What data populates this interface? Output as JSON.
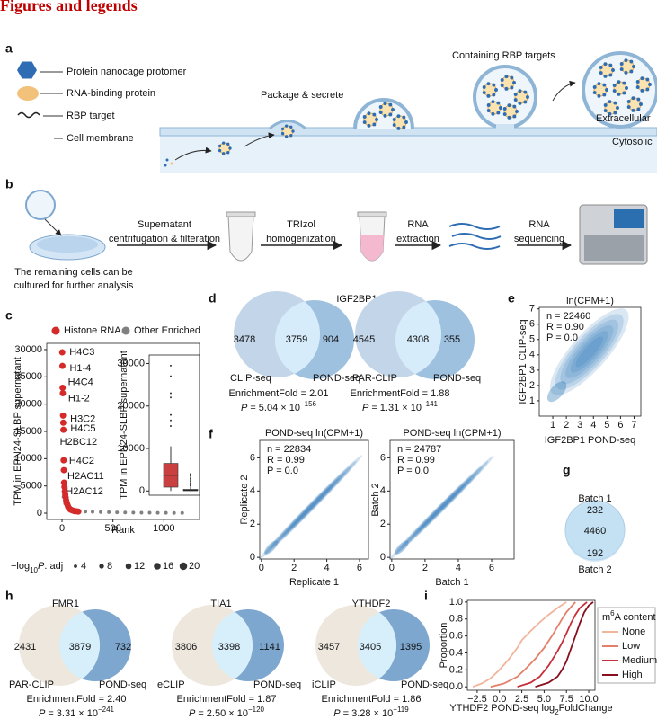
{
  "header": {
    "title": "Figures and legends"
  },
  "panel_labels": [
    "a",
    "b",
    "c",
    "d",
    "e",
    "f",
    "g",
    "h",
    "i"
  ],
  "panel_a": {
    "legend": [
      "Protein nanocage protomer",
      "RNA-binding protein",
      "RBP target",
      "Cell membrane"
    ],
    "steps": [
      "Package & secrete",
      "Containing RBP targets"
    ],
    "regions": [
      "Extracellular",
      "Cytosolic"
    ]
  },
  "panel_b": {
    "steps": [
      [
        "Supernatant",
        "centrifugation & filteration"
      ],
      [
        "TRIzol",
        "homogenization"
      ],
      [
        "RNA",
        "extraction"
      ],
      [
        "RNA",
        "sequencing"
      ]
    ],
    "note": [
      "The remaining cells can be",
      "cultured for further analysis"
    ]
  },
  "panel_d": {
    "title": "IGF2BP1"
  },
  "venns": [
    {
      "left_count": 3478,
      "overlap_count": 3759,
      "right_count": 904,
      "left_label": "CLIP-seq",
      "right_label": "POND-seq",
      "enrichment": "EnrichmentFold = 2.01",
      "p_symbol": "P",
      "p_text": "= 5.04 × 10",
      "p_exp": "−156"
    },
    {
      "left_count": 4545,
      "overlap_count": 4308,
      "right_count": 355,
      "left_label": "PAR-CLIP",
      "right_label": "POND-seq",
      "enrichment": "EnrichmentFold = 1.88",
      "p_symbol": "P",
      "p_text": "= 1.31 × 10",
      "p_exp": "−141"
    },
    {
      "title": "FMR1",
      "left_count": 2431,
      "overlap_count": 3879,
      "right_count": 732,
      "left_label": "PAR-CLIP",
      "right_label": "POND-seq",
      "enrichment": "EnrichmentFold = 2.40",
      "p_symbol": "P",
      "p_text": "= 3.31 × 10",
      "p_exp": "−241"
    },
    {
      "title": "TIA1",
      "left_count": 3806,
      "overlap_count": 3398,
      "right_count": 1141,
      "left_label": "eCLIP",
      "right_label": "POND-seq",
      "enrichment": "EnrichmentFold = 1.87",
      "p_symbol": "P",
      "p_text": "= 2.50 × 10",
      "p_exp": "−120"
    },
    {
      "title": "YTHDF2",
      "left_count": 3457,
      "overlap_count": 3405,
      "right_count": 1395,
      "left_label": "iCLIP",
      "right_label": "POND-seq",
      "enrichment": "EnrichmentFold = 1.86",
      "p_symbol": "P",
      "p_text": "= 3.28 × 10",
      "p_exp": "−119"
    }
  ],
  "panel_g": {
    "top_label": "Batch 1",
    "top_count": 232,
    "overlap_count": 4460,
    "bottom_count": 192,
    "bottom_label": "Batch 2"
  },
  "chart_data": [
    {
      "type": "scatter",
      "y_label": "TPM in EPN24-SLBP supernatant",
      "x_label": "Rank",
      "xlim": [
        -150,
        1350
      ],
      "ylim": [
        -1150,
        31150
      ],
      "xticks": [
        0,
        500,
        1000
      ],
      "yticks": [
        0,
        5000,
        10000,
        15000,
        20000,
        25000,
        30000
      ],
      "series": [
        {
          "name": "Histone RNA",
          "color": "#d42a2a",
          "x": [
            2,
            4,
            6,
            8,
            10,
            12,
            14,
            16,
            18,
            20,
            24,
            28,
            32,
            36,
            40,
            45,
            50,
            56,
            62,
            70,
            80,
            90,
            105,
            120,
            140,
            160
          ],
          "values": [
            29500,
            27000,
            23000,
            22000,
            17900,
            16600,
            15300,
            9700,
            7900,
            5600,
            4800,
            4000,
            3400,
            2900,
            2400,
            2000,
            1700,
            1400,
            1100,
            900,
            700,
            600,
            500,
            400,
            350,
            300
          ],
          "point_labels": [
            "H4C3",
            "H1-4",
            "H4C4",
            "H1-2",
            "H3C2",
            "H4C5",
            "H2BC12",
            "H4C2",
            "H2AC11",
            "H2AC12",
            null,
            null,
            null,
            null,
            null,
            null,
            null,
            null,
            null,
            null,
            null,
            null,
            null,
            null,
            null,
            null
          ]
        },
        {
          "name": "Other Enriched",
          "color": "#808080",
          "x": [
            15,
            30,
            50,
            80,
            120,
            170,
            230,
            300,
            380,
            460,
            540,
            620,
            700,
            780,
            860,
            940,
            1020,
            1100,
            1180
          ],
          "values": [
            3000,
            1800,
            1100,
            700,
            500,
            380,
            300,
            250,
            210,
            180,
            150,
            130,
            110,
            90,
            80,
            70,
            60,
            50,
            40
          ]
        }
      ],
      "size_legend": {
        "title": {
          "prefix": "−log",
          "sub": "10",
          "p": "P",
          "suffix": ". adj"
        },
        "values": [
          4,
          8,
          12,
          16,
          20
        ]
      }
    },
    {
      "type": "box",
      "y_label": "TPM in EPN24-SLBP supernatant",
      "ylim": [
        -1000,
        32000
      ],
      "yticks": [
        0,
        10000,
        20000,
        30000
      ],
      "boxes": [
        {
          "color": "#c8403f",
          "whisker_low": 0,
          "q1": 900,
          "median": 3700,
          "q3": 6500,
          "whisker_high": 10500,
          "outliers": [
            15300,
            16600,
            17900,
            22000,
            23000,
            27000,
            29500
          ]
        },
        {
          "color": "#8a8a8a",
          "whisker_low": 0,
          "q1": 50,
          "median": 150,
          "q3": 400,
          "whisker_high": 900,
          "outliers": [
            1200,
            1500,
            1800,
            2200,
            2600,
            3000,
            3500,
            4000
          ]
        }
      ]
    },
    {
      "type": "density",
      "title": "ln(CPM+1)",
      "x_label": "IGF2BP1 POND-seq",
      "y_label": "IGF2BP1 CLIP-seq",
      "xlim": [
        0,
        7.5
      ],
      "ylim": [
        0,
        7.1
      ],
      "xticks": [
        1,
        2,
        3,
        4,
        5,
        6,
        7
      ],
      "yticks": [
        1,
        2,
        3,
        4,
        5,
        6,
        7
      ],
      "annotations": [
        "n = 22460",
        "R = 0.90",
        "P = 0.0"
      ]
    },
    {
      "type": "density",
      "title": "POND-seq ln(CPM+1)",
      "x_label": "Replicate 1",
      "y_label": "Replicate 2",
      "xlim": [
        -0.1,
        6.55
      ],
      "ylim": [
        -0.1,
        7.05
      ],
      "xticks": [
        0,
        2,
        4,
        6
      ],
      "yticks": [
        0,
        2,
        4,
        6
      ],
      "annotations": [
        "n = 22834",
        "R = 0.99",
        "P = 0.0"
      ]
    },
    {
      "type": "density",
      "title": "POND-seq ln(CPM+1)",
      "x_label": "Batch 1",
      "y_label": "Batch 2",
      "xlim": [
        -0.1,
        7.35
      ],
      "ylim": [
        -0.1,
        7.05
      ],
      "xticks": [
        0,
        2,
        4,
        6
      ],
      "yticks": [
        0,
        2,
        4,
        6
      ],
      "annotations": [
        "n = 24787",
        "R = 0.99",
        "P = 0.0"
      ]
    },
    {
      "type": "line",
      "y_label": "Proportion",
      "x_label": {
        "prefix": "YTHDF2 POND-seq log",
        "sub": "2",
        "suffix": "FoldChange"
      },
      "xlim": [
        -3.6,
        10.7
      ],
      "ylim": [
        -0.04,
        1.02
      ],
      "xticks": [
        {
          "value": -2.5,
          "label": "−2.5"
        },
        {
          "value": 0,
          "label": "0.0"
        },
        2.5,
        {
          "value": 5,
          "label": "5.0"
        },
        7.5,
        {
          "value": 10,
          "label": "10.0"
        }
      ],
      "yticks": [
        {
          "value": 0,
          "label": "0.0"
        },
        0.2,
        0.4,
        0.6,
        0.8,
        {
          "value": 1,
          "label": "1.0"
        }
      ],
      "legend_title": {
        "prefix": "m",
        "sup": "6",
        "suffix": "A content"
      },
      "series": [
        {
          "name": "None",
          "color": "#f2b49b",
          "x": [
            -3.0,
            -2.0,
            -1.0,
            0.0,
            1.0,
            2.0,
            2.5,
            3.5,
            4.5,
            5.5,
            6.5,
            7.5
          ],
          "values": [
            0,
            0.04,
            0.1,
            0.2,
            0.32,
            0.46,
            0.55,
            0.66,
            0.76,
            0.85,
            0.93,
            1.0
          ]
        },
        {
          "name": "Low",
          "color": "#e47f68",
          "x": [
            -1.0,
            0.5,
            2.0,
            3.0,
            4.0,
            5.0,
            6.0,
            7.0,
            7.5,
            8.5
          ],
          "values": [
            0,
            0.04,
            0.12,
            0.22,
            0.33,
            0.46,
            0.62,
            0.8,
            0.88,
            1.0
          ]
        },
        {
          "name": "Medium",
          "color": "#c7303a",
          "x": [
            2.0,
            3.5,
            4.5,
            5.5,
            6.5,
            7.0,
            7.5,
            8.0,
            8.5,
            9.0,
            9.8
          ],
          "values": [
            0,
            0.05,
            0.12,
            0.25,
            0.42,
            0.52,
            0.63,
            0.75,
            0.85,
            0.93,
            1.0
          ]
        },
        {
          "name": "High",
          "color": "#87101f",
          "x": [
            4.0,
            5.5,
            6.5,
            7.0,
            7.5,
            8.0,
            8.5,
            9.0,
            9.5,
            10.0,
            10.5
          ],
          "values": [
            0,
            0.05,
            0.12,
            0.2,
            0.3,
            0.45,
            0.6,
            0.75,
            0.88,
            0.96,
            1.0
          ]
        }
      ]
    }
  ]
}
